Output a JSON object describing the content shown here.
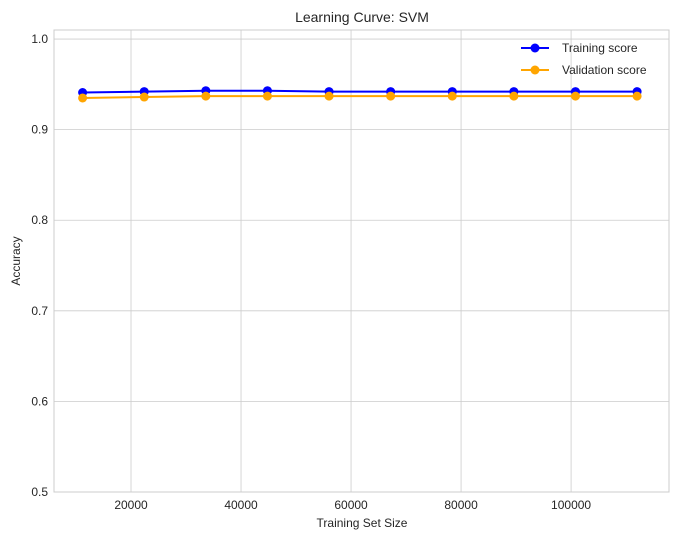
{
  "chart_data": {
    "type": "line",
    "title": "Learning Curve: SVM",
    "xlabel": "Training Set Size",
    "ylabel": "Accuracy",
    "xlim": [
      6000,
      117800
    ],
    "ylim": [
      0.5,
      1.01
    ],
    "xticks": [
      20000,
      40000,
      60000,
      80000,
      100000
    ],
    "yticks": [
      0.5,
      0.6,
      0.7,
      0.8,
      0.9,
      1.0
    ],
    "xtick_labels": [
      "20000",
      "40000",
      "60000",
      "80000",
      "100000"
    ],
    "ytick_labels": [
      "0.5",
      "0.6",
      "0.7",
      "0.8",
      "0.9",
      "1.0"
    ],
    "grid": true,
    "legend_position": "top-right",
    "x": [
      11200,
      22400,
      33600,
      44800,
      56000,
      67200,
      78400,
      89600,
      100800,
      112000
    ],
    "series": [
      {
        "name": "Training score",
        "color": "#0000ff",
        "marker": "circle",
        "values": [
          0.941,
          0.942,
          0.943,
          0.943,
          0.942,
          0.942,
          0.942,
          0.942,
          0.942,
          0.942
        ]
      },
      {
        "name": "Validation score",
        "color": "#ffa500",
        "marker": "circle",
        "values": [
          0.935,
          0.936,
          0.937,
          0.937,
          0.937,
          0.937,
          0.937,
          0.937,
          0.937,
          0.937
        ]
      }
    ]
  }
}
